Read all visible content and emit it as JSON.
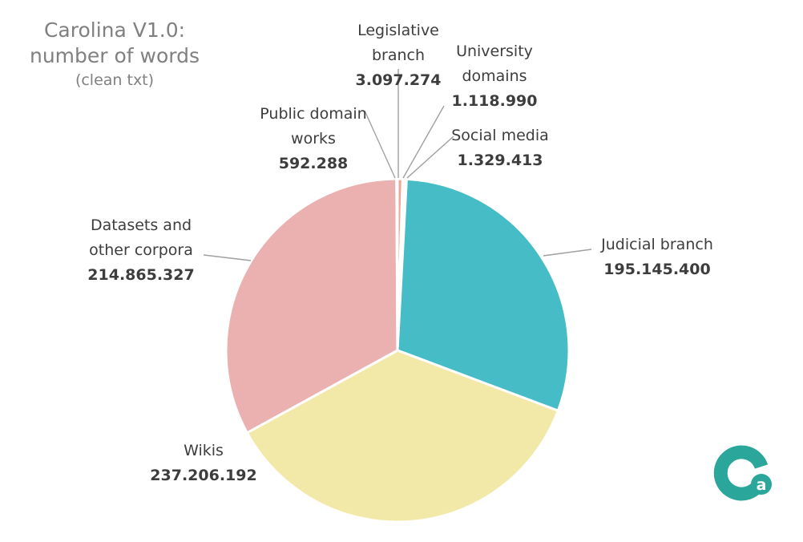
{
  "title": {
    "line1": "Carolina V1.0:",
    "line2": "number of words",
    "line3": "(clean txt)"
  },
  "logo": {
    "text": "Ca",
    "color_main": "#2aa79a",
    "color_letter": "#2aa79a"
  },
  "chart_data": {
    "type": "pie",
    "title": "Carolina V1.0: number of words (clean txt)",
    "slices": [
      {
        "label": [
          "Legislative",
          "branch"
        ],
        "value_label": "3.097.274",
        "value": 3097274,
        "color": "#f0a49a"
      },
      {
        "label": [
          "University",
          "domains"
        ],
        "value_label": "1.118.990",
        "value": 1118990,
        "color": "#d6d6d6"
      },
      {
        "label": [
          "Social media"
        ],
        "value_label": "1.329.413",
        "value": 1329413,
        "color": "#d0d0d0"
      },
      {
        "label": [
          "Judicial branch"
        ],
        "value_label": "195.145.400",
        "value": 195145400,
        "color": "#46bcc6"
      },
      {
        "label": [
          "Wikis"
        ],
        "value_label": "237.206.192",
        "value": 237206192,
        "color": "#f2e9a8"
      },
      {
        "label": [
          "Datasets and",
          "other corpora"
        ],
        "value_label": "214.865.327",
        "value": 214865327,
        "color": "#ebb1b1"
      },
      {
        "label": [
          "Public domain",
          "works"
        ],
        "value_label": "592.288",
        "value": 592288,
        "color": "#e6c2c2"
      }
    ]
  }
}
